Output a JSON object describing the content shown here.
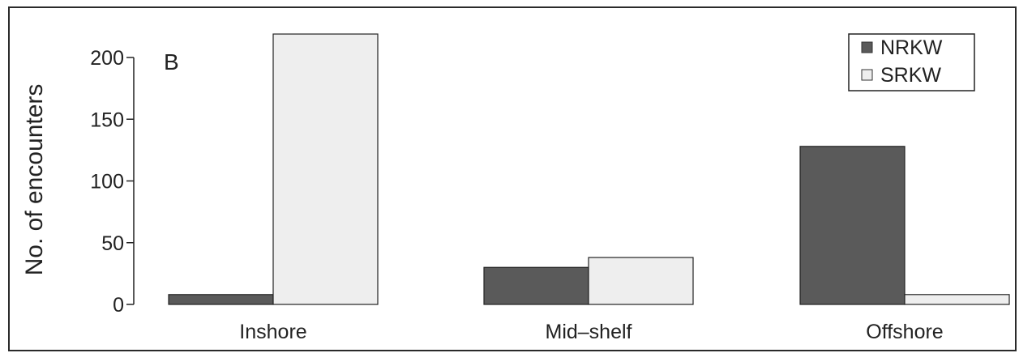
{
  "chart_data": {
    "type": "bar",
    "panel_label": "B",
    "title": "",
    "xlabel": "",
    "ylabel": "No. of encounters",
    "ylim": [
      0,
      220
    ],
    "yticks": [
      0,
      50,
      100,
      150,
      200
    ],
    "categories": [
      "Inshore",
      "Mid–shelf",
      "Offshore"
    ],
    "series": [
      {
        "name": "NRKW",
        "color": "#5a5a5a",
        "values": [
          8,
          30,
          128
        ]
      },
      {
        "name": "SRKW",
        "color": "#eeeeee",
        "values": [
          219,
          38,
          8
        ]
      }
    ],
    "grid": false,
    "legend_position": "top-right"
  }
}
